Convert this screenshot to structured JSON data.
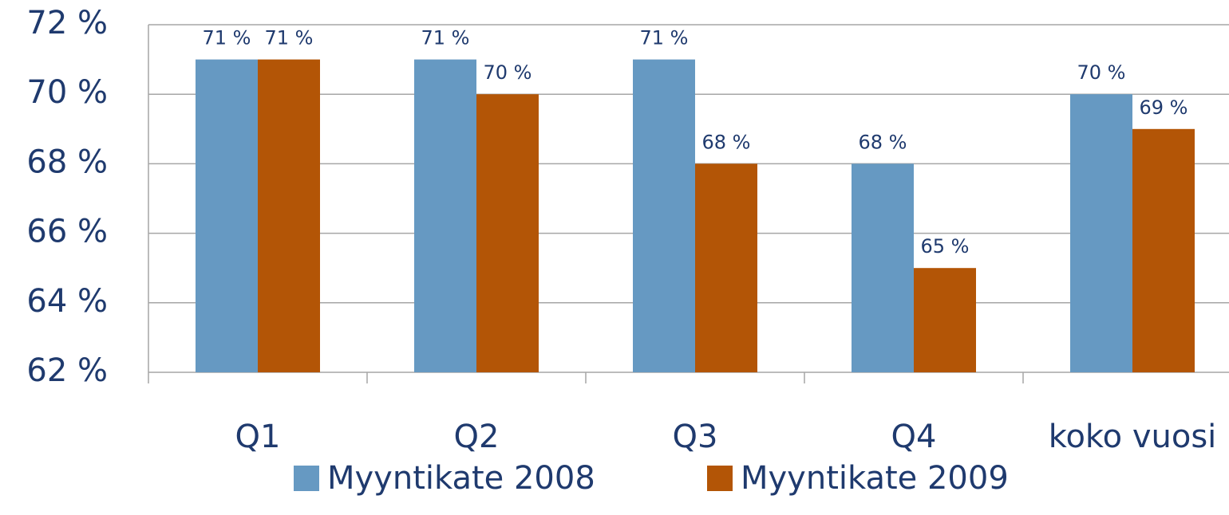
{
  "chart_data": {
    "type": "bar",
    "categories": [
      "Q1",
      "Q2",
      "Q3",
      "Q4",
      "koko vuosi"
    ],
    "series": [
      {
        "name": "Myyntikate 2008",
        "color": "#6699c2",
        "values": [
          71,
          71,
          71,
          68,
          70
        ],
        "value_labels": [
          "71 %",
          "71 %",
          "71 %",
          "68 %",
          "70 %"
        ]
      },
      {
        "name": "Myyntikate 2009",
        "color": "#b35506",
        "values": [
          71,
          70,
          68,
          65,
          69
        ],
        "value_labels": [
          "71 %",
          "70 %",
          "68 %",
          "65 %",
          "69 %"
        ]
      }
    ],
    "ylim": [
      62,
      72
    ],
    "yticks": [
      {
        "value": 62,
        "label": "62 %"
      },
      {
        "value": 64,
        "label": "64 %"
      },
      {
        "value": 66,
        "label": "66 %"
      },
      {
        "value": 68,
        "label": "68 %"
      },
      {
        "value": 70,
        "label": "70 %"
      },
      {
        "value": 72,
        "label": "72 %"
      }
    ],
    "grid": true,
    "legend": "bottom"
  }
}
